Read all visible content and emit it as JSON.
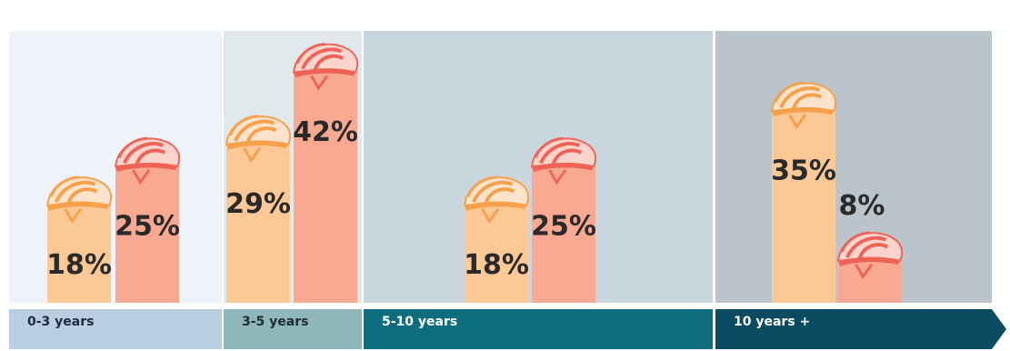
{
  "chart_data": {
    "type": "bar",
    "categories": [
      "0-3 years",
      "3-5 years",
      "5-10 years",
      "10 years +"
    ],
    "series": [
      {
        "values": [
          18,
          29,
          18,
          35
        ]
      },
      {
        "values": [
          25,
          42,
          25,
          8
        ]
      }
    ],
    "value_labels": {
      "first": [
        "18%",
        "29%",
        "18%",
        "35%"
      ],
      "second": [
        "25%",
        "42%",
        "25%",
        "8%"
      ]
    },
    "unit": "%",
    "ylim": [
      0,
      50
    ],
    "grid": false,
    "legend": "none"
  },
  "colors": {
    "panel_bg": [
      "#eef2f9",
      "#e1e8ec",
      "#c9d6de",
      "#bbc3cb"
    ],
    "axis_band": [
      "#b9cde3",
      "#8fb7b9",
      "#0e6e7e",
      "#0a4b62"
    ],
    "axis_text": [
      "#1d2a3a",
      "#1d2a3a",
      "#ffffff",
      "#ffffff"
    ],
    "series": [
      "#fcc896",
      "#f9a892"
    ],
    "helmet_light": [
      "#fde3cc",
      "#fcd4cc"
    ],
    "helmet_dark": [
      "#f6a04a",
      "#ee6355"
    ]
  },
  "icons": {
    "bar_cap": "bike-helmet-icon"
  }
}
